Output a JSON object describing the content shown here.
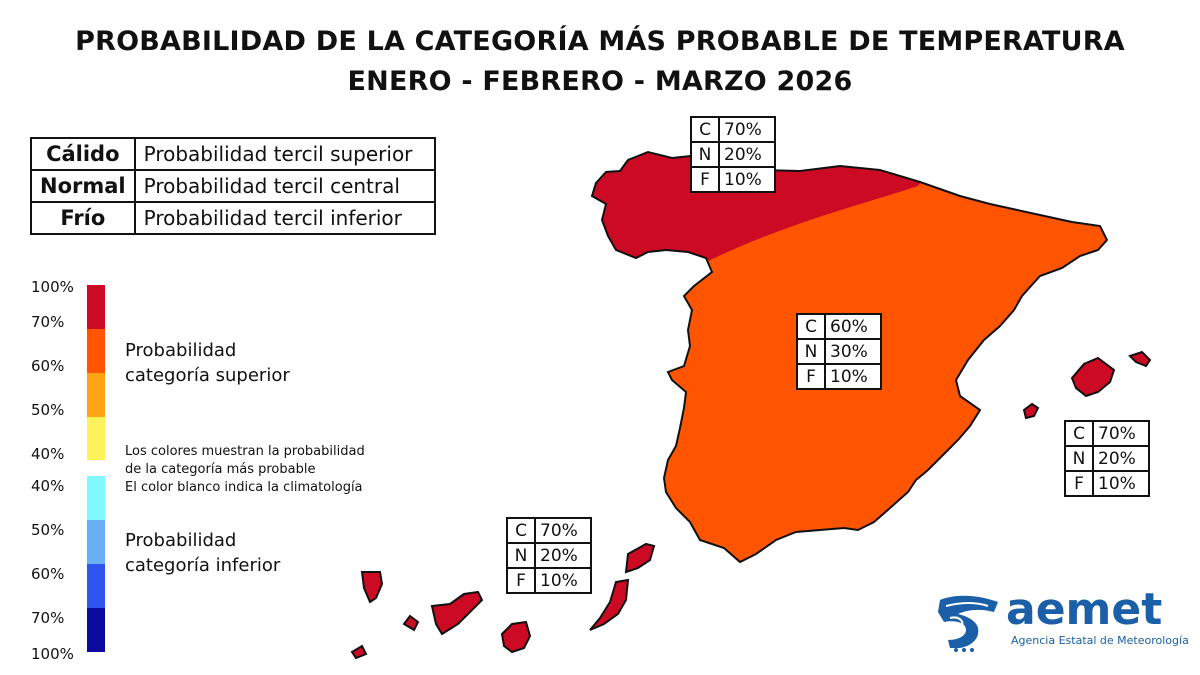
{
  "title": "PROBABILIDAD DE LA CATEGORÍA MÁS PROBABLE DE TEMPERATURA",
  "subtitle": "ENERO - FEBRERO - MARZO 2026",
  "legend_table": [
    {
      "key": "Cálido",
      "value": "Probabilidad tercil superior"
    },
    {
      "key": "Normal",
      "value": "Probabilidad tercil central"
    },
    {
      "key": "Frío",
      "value": "Probabilidad tercil inferior"
    }
  ],
  "scale": {
    "upper_labels": [
      "100%",
      "70%",
      "60%",
      "50%",
      "40%"
    ],
    "lower_labels": [
      "40%",
      "50%",
      "60%",
      "70%",
      "100%"
    ],
    "upper_colors": [
      "#cc0a24",
      "#ff5500",
      "#ffa514",
      "#fff35c"
    ],
    "lower_colors": [
      "#7ff9ff",
      "#6ab0f5",
      "#2f55f0",
      "#0a0a9e"
    ],
    "upper_category": "Probabilidad categoría superior",
    "lower_category": "Probabilidad categoría inferior",
    "note": [
      "Los colores muestran la probabilidad",
      "de la categoría más probable",
      "El color blanco indica la climatología"
    ]
  },
  "map_colors": {
    "dark_red": "#cc0a24",
    "orange": "#ff5500"
  },
  "regions": {
    "north": {
      "rows": [
        [
          "C",
          "70%"
        ],
        [
          "N",
          "20%"
        ],
        [
          "F",
          "10%"
        ]
      ]
    },
    "center": {
      "rows": [
        [
          "C",
          "60%"
        ],
        [
          "N",
          "30%"
        ],
        [
          "F",
          "10%"
        ]
      ]
    },
    "balearic": {
      "rows": [
        [
          "C",
          "70%"
        ],
        [
          "N",
          "20%"
        ],
        [
          "F",
          "10%"
        ]
      ]
    },
    "canary": {
      "rows": [
        [
          "C",
          "70%"
        ],
        [
          "N",
          "20%"
        ],
        [
          "F",
          "10%"
        ]
      ]
    }
  },
  "logo": {
    "word": "aemet",
    "subtitle": "Agencia Estatal de Meteorología"
  }
}
